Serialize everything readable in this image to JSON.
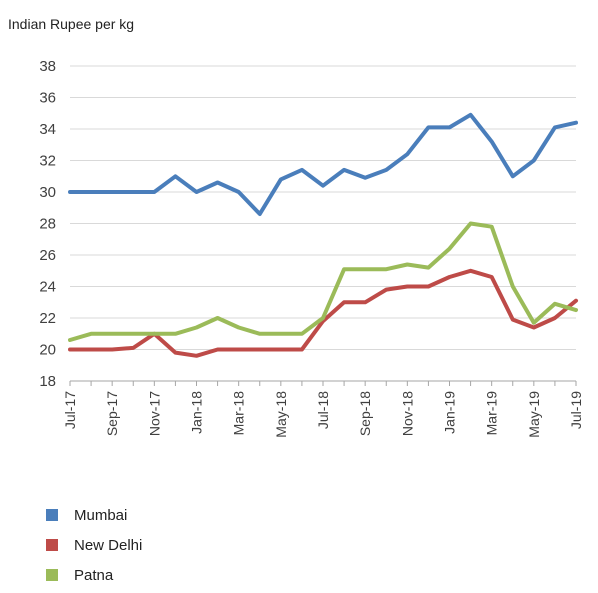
{
  "chart_data": {
    "type": "line",
    "ylabel": "Indian Rupee per kg",
    "ylim": [
      18,
      38
    ],
    "yticks": [
      "18",
      "20",
      "22",
      "24",
      "26",
      "28",
      "30",
      "32",
      "34",
      "36",
      "38"
    ],
    "x": [
      "Jul-17",
      "Aug-17",
      "Sep-17",
      "Oct-17",
      "Nov-17",
      "Dec-17",
      "Jan-18",
      "Feb-18",
      "Mar-18",
      "Apr-18",
      "May-18",
      "Jun-18",
      "Jul-18",
      "Aug-18",
      "Sep-18",
      "Oct-18",
      "Nov-18",
      "Dec-18",
      "Jan-19",
      "Feb-19",
      "Mar-19",
      "Apr-19",
      "May-19",
      "Jun-19",
      "Jul-19"
    ],
    "xtick_labels": [
      "Jul-17",
      "Sep-17",
      "Nov-17",
      "Jan-18",
      "Mar-18",
      "May-18",
      "Jul-18",
      "Sep-18",
      "Nov-18",
      "Jan-19",
      "Mar-19",
      "May-19",
      "Jul-19"
    ],
    "grid": "horizontal",
    "legend_position": "bottom-left",
    "series": [
      {
        "name": "Mumbai",
        "color": "#4a7ebb",
        "values": [
          30.0,
          30.0,
          30.0,
          30.0,
          30.0,
          31.0,
          30.0,
          30.6,
          30.0,
          28.6,
          30.8,
          31.4,
          30.4,
          31.4,
          30.9,
          31.4,
          32.4,
          34.1,
          34.1,
          34.9,
          33.2,
          31.0,
          32.0,
          34.1,
          34.4
        ]
      },
      {
        "name": "New Delhi",
        "color": "#be4b48",
        "values": [
          20.0,
          20.0,
          20.0,
          20.1,
          21.0,
          19.8,
          19.6,
          20.0,
          20.0,
          20.0,
          20.0,
          20.0,
          21.8,
          23.0,
          23.0,
          23.8,
          24.0,
          24.0,
          24.6,
          25.0,
          24.6,
          21.9,
          21.4,
          22.0,
          23.1
        ]
      },
      {
        "name": "Patna",
        "color": "#9bbb59",
        "values": [
          20.6,
          21.0,
          21.0,
          21.0,
          21.0,
          21.0,
          21.4,
          22.0,
          21.4,
          21.0,
          21.0,
          21.0,
          22.0,
          25.1,
          25.1,
          25.1,
          25.4,
          25.2,
          26.4,
          28.0,
          27.8,
          24.0,
          21.7,
          22.9,
          22.5
        ]
      }
    ]
  }
}
